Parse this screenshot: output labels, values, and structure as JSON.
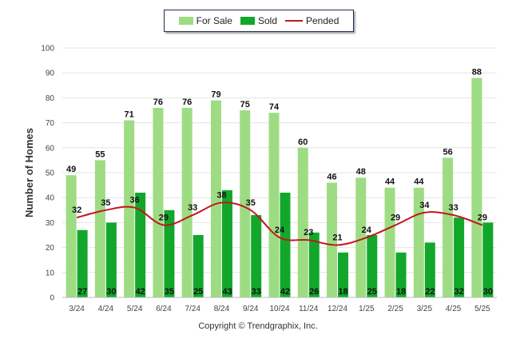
{
  "legend": {
    "for_sale": "For Sale",
    "sold": "Sold",
    "pended": "Pended"
  },
  "copyright": "Copyright © Trendgraphix, Inc.",
  "colors": {
    "for_sale": "#9edc83",
    "sold": "#12a72b",
    "pended": "#c0171d",
    "grid": "#e4e4e4",
    "axis_text": "#444444"
  },
  "chart_data": {
    "type": "bar",
    "ylabel": "Number of Homes",
    "ylim": [
      0,
      100
    ],
    "yticks": [
      0,
      10,
      20,
      30,
      40,
      50,
      60,
      70,
      80,
      90,
      100
    ],
    "categories": [
      "3/24",
      "4/24",
      "5/24",
      "6/24",
      "7/24",
      "8/24",
      "9/24",
      "10/24",
      "11/24",
      "12/24",
      "1/25",
      "2/25",
      "3/25",
      "4/25",
      "5/25"
    ],
    "series": [
      {
        "name": "For Sale",
        "kind": "bar",
        "values": [
          49,
          55,
          71,
          76,
          76,
          79,
          75,
          74,
          60,
          46,
          48,
          44,
          44,
          56,
          88
        ]
      },
      {
        "name": "Sold",
        "kind": "bar",
        "values": [
          27,
          30,
          42,
          35,
          25,
          43,
          33,
          42,
          26,
          18,
          25,
          18,
          22,
          32,
          30
        ]
      },
      {
        "name": "Pended",
        "kind": "line",
        "values": [
          32,
          35,
          36,
          29,
          33,
          38,
          35,
          24,
          23,
          21,
          24,
          29,
          34,
          33,
          29
        ]
      }
    ],
    "grid": true,
    "legend_position": "top-center"
  }
}
